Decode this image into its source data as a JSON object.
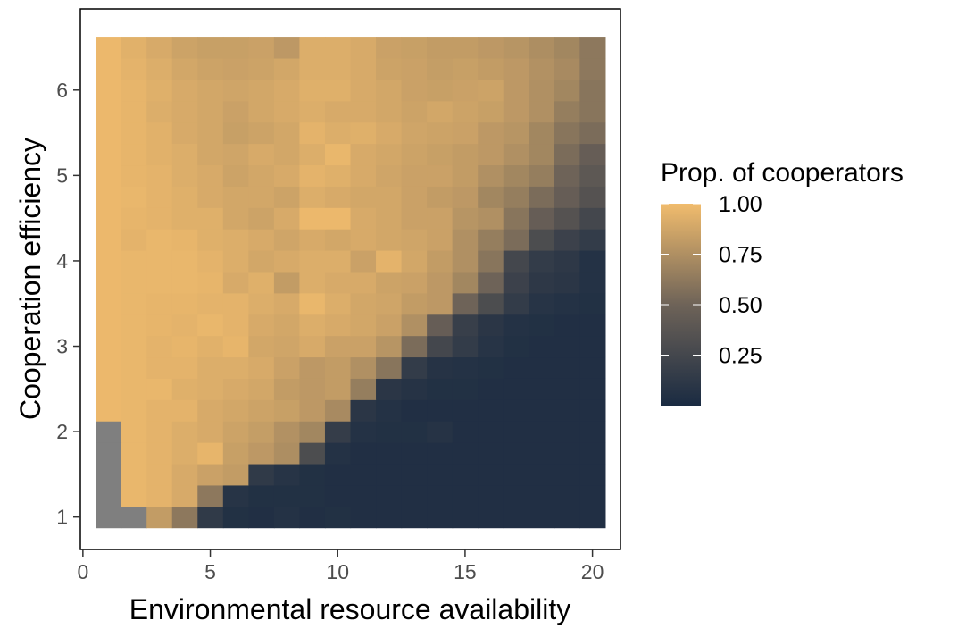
{
  "chart_data": {
    "type": "heatmap",
    "title": "",
    "xlabel": "Environmental resource availability",
    "ylabel": "Cooperation efficiency",
    "x_ticks": [
      0,
      5,
      10,
      15,
      20
    ],
    "y_ticks": [
      1,
      2,
      3,
      4,
      5,
      6
    ],
    "xlim": [
      -0.1,
      21.1
    ],
    "ylim": [
      0.62,
      6.95
    ],
    "x_cells": [
      1,
      2,
      3,
      4,
      5,
      6,
      7,
      8,
      9,
      10,
      11,
      12,
      13,
      14,
      15,
      16,
      17,
      18,
      19,
      20
    ],
    "y_cells": [
      1.0,
      1.25,
      1.5,
      1.75,
      2.0,
      2.25,
      2.5,
      2.75,
      3.0,
      3.25,
      3.5,
      3.75,
      4.0,
      4.25,
      4.5,
      4.75,
      5.0,
      5.25,
      5.5,
      5.75,
      6.0,
      6.25,
      6.5
    ],
    "missing_color": "#7f7f7f",
    "color_scale": {
      "low": "#1a2b42",
      "mid": "#6e6358",
      "high": "#f1bc6d"
    },
    "legend": {
      "title": "Prop. of cooperators",
      "labels": [
        "1.00",
        "0.75",
        "0.50",
        "0.25"
      ],
      "values": [
        1.0,
        0.75,
        0.5,
        0.25
      ],
      "position": "right"
    },
    "values": [
      [
        null,
        null,
        0.82,
        0.62,
        0.13,
        0.05,
        0.04,
        0.06,
        0.04,
        0.05,
        0.04,
        0.04,
        0.04,
        0.04,
        0.04,
        0.04,
        0.04,
        0.04,
        0.04,
        0.04
      ],
      [
        null,
        0.97,
        0.95,
        0.9,
        0.62,
        0.08,
        0.05,
        0.05,
        0.05,
        0.04,
        0.04,
        0.04,
        0.04,
        0.04,
        0.04,
        0.04,
        0.04,
        0.04,
        0.04,
        0.04
      ],
      [
        null,
        0.97,
        0.95,
        0.9,
        0.85,
        0.82,
        0.13,
        0.08,
        0.05,
        0.04,
        0.04,
        0.04,
        0.04,
        0.04,
        0.04,
        0.04,
        0.04,
        0.04,
        0.04,
        0.04
      ],
      [
        null,
        0.97,
        0.95,
        0.92,
        0.96,
        0.84,
        0.8,
        0.74,
        0.3,
        0.06,
        0.04,
        0.04,
        0.04,
        0.04,
        0.04,
        0.04,
        0.04,
        0.04,
        0.04,
        0.04
      ],
      [
        null,
        0.97,
        0.95,
        0.92,
        0.9,
        0.86,
        0.83,
        0.76,
        0.7,
        0.16,
        0.06,
        0.05,
        0.05,
        0.07,
        0.04,
        0.04,
        0.04,
        0.04,
        0.04,
        0.04
      ],
      [
        0.98,
        0.97,
        0.95,
        0.95,
        0.9,
        0.88,
        0.86,
        0.84,
        0.8,
        0.72,
        0.1,
        0.06,
        0.04,
        0.04,
        0.04,
        0.04,
        0.04,
        0.04,
        0.04,
        0.04
      ],
      [
        0.98,
        0.97,
        0.97,
        0.93,
        0.92,
        0.9,
        0.88,
        0.82,
        0.8,
        0.82,
        0.65,
        0.1,
        0.07,
        0.05,
        0.05,
        0.04,
        0.04,
        0.04,
        0.04,
        0.04
      ],
      [
        0.98,
        0.97,
        0.95,
        0.95,
        0.92,
        0.92,
        0.9,
        0.85,
        0.8,
        0.82,
        0.75,
        0.6,
        0.15,
        0.07,
        0.06,
        0.05,
        0.04,
        0.04,
        0.04,
        0.04
      ],
      [
        0.98,
        0.97,
        0.95,
        0.96,
        0.94,
        0.96,
        0.88,
        0.87,
        0.9,
        0.85,
        0.85,
        0.78,
        0.55,
        0.25,
        0.15,
        0.08,
        0.05,
        0.04,
        0.04,
        0.04
      ],
      [
        0.98,
        0.97,
        0.96,
        0.95,
        0.97,
        0.95,
        0.9,
        0.88,
        0.92,
        0.9,
        0.88,
        0.85,
        0.75,
        0.45,
        0.18,
        0.1,
        0.06,
        0.05,
        0.04,
        0.04
      ],
      [
        0.98,
        0.97,
        0.96,
        0.96,
        0.95,
        0.95,
        0.92,
        0.9,
        0.97,
        0.92,
        0.88,
        0.87,
        0.82,
        0.8,
        0.5,
        0.3,
        0.15,
        0.08,
        0.06,
        0.05
      ],
      [
        0.98,
        0.97,
        0.97,
        0.97,
        0.96,
        0.9,
        0.93,
        0.82,
        0.92,
        0.9,
        0.9,
        0.86,
        0.85,
        0.8,
        0.7,
        0.5,
        0.2,
        0.12,
        0.1,
        0.06
      ],
      [
        0.98,
        0.97,
        0.97,
        0.97,
        0.95,
        0.92,
        0.88,
        0.9,
        0.92,
        0.92,
        0.85,
        0.95,
        0.88,
        0.82,
        0.75,
        0.6,
        0.25,
        0.15,
        0.12,
        0.06
      ],
      [
        0.98,
        0.95,
        0.97,
        0.96,
        0.93,
        0.92,
        0.9,
        0.87,
        0.9,
        0.88,
        0.9,
        0.88,
        0.87,
        0.85,
        0.75,
        0.65,
        0.55,
        0.3,
        0.2,
        0.15
      ],
      [
        0.98,
        0.96,
        0.95,
        0.93,
        0.93,
        0.88,
        0.86,
        0.9,
        0.98,
        0.98,
        0.9,
        0.88,
        0.85,
        0.85,
        0.78,
        0.75,
        0.6,
        0.45,
        0.35,
        0.25
      ],
      [
        0.98,
        0.97,
        0.95,
        0.93,
        0.9,
        0.88,
        0.88,
        0.86,
        0.92,
        0.9,
        0.88,
        0.88,
        0.85,
        0.82,
        0.8,
        0.7,
        0.65,
        0.55,
        0.45,
        0.35
      ],
      [
        0.98,
        0.96,
        0.95,
        0.92,
        0.9,
        0.86,
        0.88,
        0.9,
        0.95,
        0.93,
        0.9,
        0.87,
        0.85,
        0.85,
        0.82,
        0.75,
        0.7,
        0.65,
        0.5,
        0.4
      ],
      [
        0.98,
        0.96,
        0.94,
        0.92,
        0.88,
        0.87,
        0.9,
        0.88,
        0.92,
        0.97,
        0.9,
        0.88,
        0.86,
        0.84,
        0.82,
        0.8,
        0.75,
        0.7,
        0.55,
        0.45
      ],
      [
        0.98,
        0.96,
        0.94,
        0.9,
        0.88,
        0.84,
        0.86,
        0.88,
        0.95,
        0.92,
        0.93,
        0.9,
        0.87,
        0.86,
        0.85,
        0.8,
        0.78,
        0.7,
        0.6,
        0.55
      ],
      [
        0.98,
        0.96,
        0.92,
        0.9,
        0.88,
        0.85,
        0.88,
        0.9,
        0.92,
        0.9,
        0.9,
        0.88,
        0.86,
        0.88,
        0.86,
        0.84,
        0.8,
        0.75,
        0.65,
        0.6
      ],
      [
        0.98,
        0.96,
        0.93,
        0.9,
        0.88,
        0.87,
        0.88,
        0.9,
        0.93,
        0.93,
        0.9,
        0.88,
        0.85,
        0.84,
        0.85,
        0.86,
        0.8,
        0.75,
        0.7,
        0.6
      ],
      [
        0.98,
        0.95,
        0.92,
        0.88,
        0.86,
        0.85,
        0.86,
        0.88,
        0.92,
        0.92,
        0.9,
        0.86,
        0.85,
        0.83,
        0.84,
        0.82,
        0.8,
        0.76,
        0.72,
        0.62
      ],
      [
        0.98,
        0.94,
        0.9,
        0.86,
        0.84,
        0.84,
        0.85,
        0.8,
        0.92,
        0.92,
        0.9,
        0.85,
        0.84,
        0.82,
        0.82,
        0.8,
        0.78,
        0.74,
        0.7,
        0.62
      ]
    ]
  }
}
